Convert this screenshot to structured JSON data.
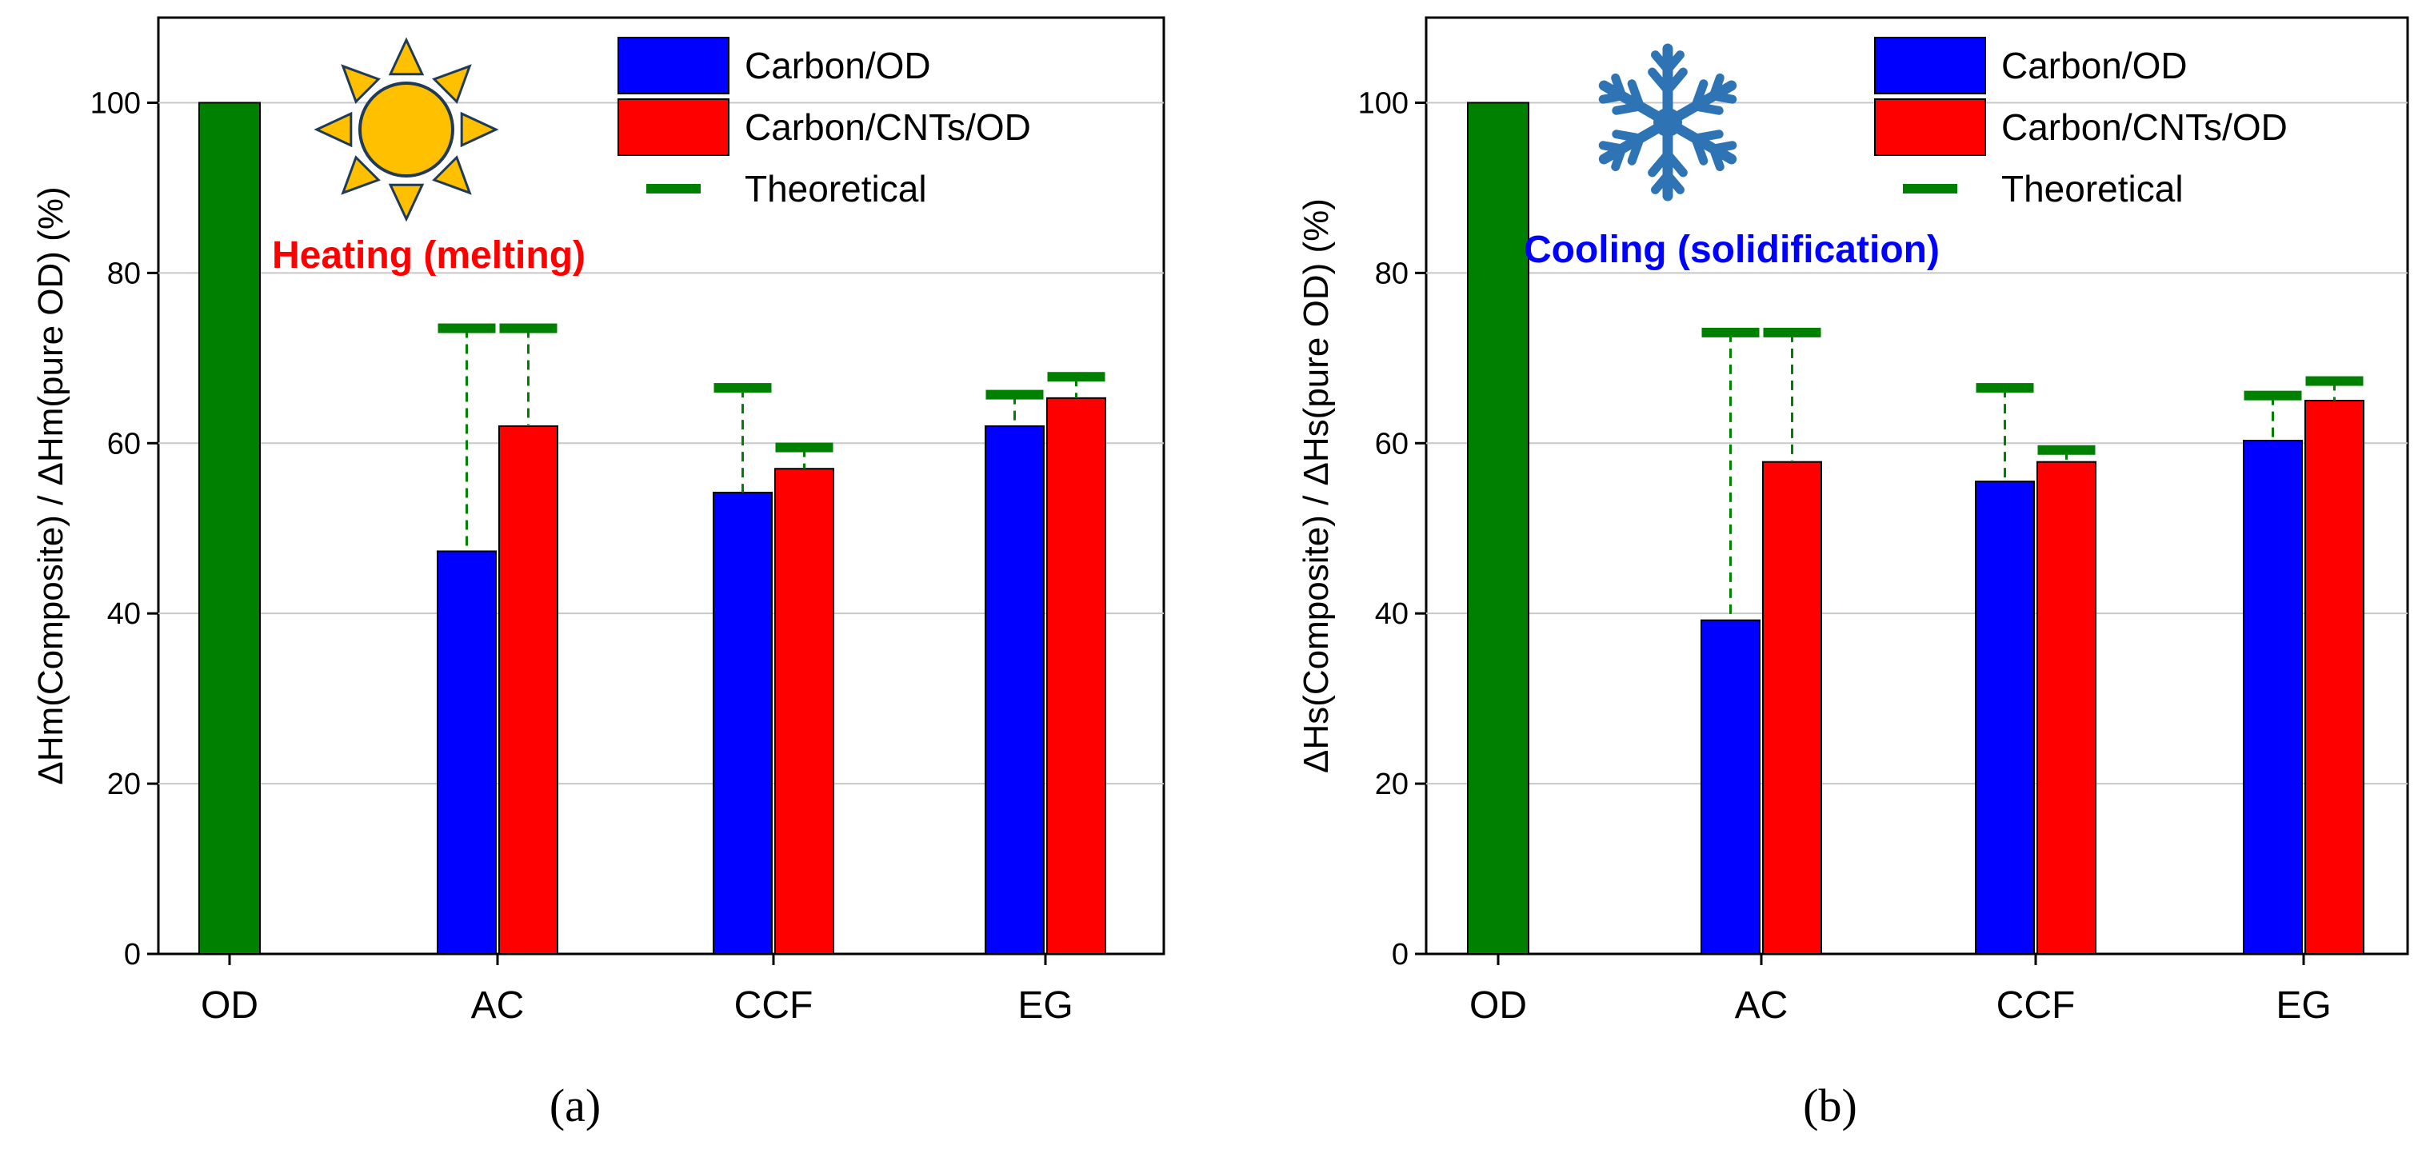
{
  "chart_data": [
    {
      "type": "bar",
      "panel_label": "(a)",
      "ylabel": "ΔHm(Composite) / ΔHm(pure OD) (%)",
      "xlabel": "",
      "annotation": "Heating (melting)",
      "annotation_color": "#ff0000",
      "icon": "sun-icon",
      "ylim": [
        0,
        110
      ],
      "yticks": [
        0,
        20,
        40,
        60,
        80,
        100
      ],
      "grid": true,
      "categories": [
        "OD",
        "AC",
        "CCF",
        "EG"
      ],
      "reference": {
        "name": "OD",
        "category": "OD",
        "value": 100,
        "color": "#008000"
      },
      "series": [
        {
          "name": "Carbon/OD",
          "color": "#0000ff",
          "values": [
            null,
            47.3,
            54.2,
            62.0
          ],
          "theoretical": [
            null,
            73.5,
            66.5,
            65.7
          ]
        },
        {
          "name": "Carbon/CNTs/OD",
          "color": "#ff0000",
          "values": [
            null,
            62.0,
            57.0,
            65.3
          ],
          "theoretical": [
            null,
            73.5,
            59.5,
            67.8
          ]
        }
      ],
      "legend": {
        "position": "top-right",
        "entries": [
          "Carbon/OD",
          "Carbon/CNTs/OD",
          "Theoretical"
        ]
      },
      "theoretical_color": "#008000"
    },
    {
      "type": "bar",
      "panel_label": "(b)",
      "ylabel": "ΔHs(Composite) / ΔHs(pure OD) (%)",
      "xlabel": "",
      "annotation": "Cooling (solidification)",
      "annotation_color": "#0000ff",
      "icon": "snowflake-icon",
      "ylim": [
        0,
        110
      ],
      "yticks": [
        0,
        20,
        40,
        60,
        80,
        100
      ],
      "grid": true,
      "categories": [
        "OD",
        "AC",
        "CCF",
        "EG"
      ],
      "reference": {
        "name": "OD",
        "category": "OD",
        "value": 100,
        "color": "#008000"
      },
      "series": [
        {
          "name": "Carbon/OD",
          "color": "#0000ff",
          "values": [
            null,
            39.2,
            55.5,
            60.3
          ],
          "theoretical": [
            null,
            73.0,
            66.5,
            65.6
          ]
        },
        {
          "name": "Carbon/CNTs/OD",
          "color": "#ff0000",
          "values": [
            null,
            57.8,
            57.8,
            65.0
          ],
          "theoretical": [
            null,
            73.0,
            59.2,
            67.3
          ]
        }
      ],
      "legend": {
        "position": "top-right",
        "entries": [
          "Carbon/OD",
          "Carbon/CNTs/OD",
          "Theoretical"
        ]
      },
      "theoretical_color": "#008000"
    }
  ]
}
